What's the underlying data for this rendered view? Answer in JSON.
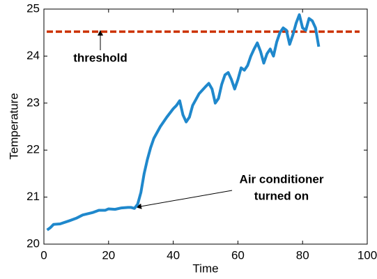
{
  "chart_data": {
    "type": "line",
    "x_label": "Time",
    "y_label": "Temperature",
    "xlim": [
      0,
      100
    ],
    "xticks": [
      0,
      20,
      40,
      60,
      80,
      100
    ],
    "ylim": [
      20,
      25
    ],
    "yticks": [
      20,
      21,
      22,
      23,
      24,
      25
    ],
    "x": [
      1,
      2,
      3,
      5,
      8,
      10,
      12,
      15,
      17,
      19,
      20,
      22,
      24,
      26,
      27,
      28,
      29,
      30,
      31,
      32,
      33,
      34,
      36,
      38,
      40,
      41,
      42,
      43,
      44,
      45,
      46,
      48,
      50,
      51,
      52,
      53,
      54,
      55,
      56,
      57,
      58,
      59,
      60,
      61,
      62,
      63,
      64,
      65,
      66,
      67,
      68,
      69,
      70,
      71,
      72,
      73,
      74,
      75,
      76,
      77,
      78,
      79,
      80,
      81,
      82,
      83,
      84,
      85
    ],
    "series": [
      {
        "color": "#1f88cc",
        "values": [
          20.3,
          20.35,
          20.42,
          20.43,
          20.5,
          20.55,
          20.62,
          20.67,
          20.72,
          20.72,
          20.75,
          20.74,
          20.77,
          20.78,
          20.78,
          20.76,
          20.85,
          21.1,
          21.5,
          21.8,
          22.05,
          22.25,
          22.5,
          22.7,
          22.88,
          22.95,
          23.05,
          22.75,
          22.6,
          22.7,
          22.95,
          23.2,
          23.35,
          23.42,
          23.3,
          23.0,
          23.1,
          23.4,
          23.6,
          23.65,
          23.5,
          23.3,
          23.5,
          23.75,
          23.7,
          23.8,
          24.0,
          24.15,
          24.28,
          24.1,
          23.85,
          24.05,
          24.15,
          24.0,
          24.3,
          24.5,
          24.6,
          24.55,
          24.25,
          24.45,
          24.7,
          24.88,
          24.6,
          24.55,
          24.8,
          24.75,
          24.6,
          24.2
        ]
      }
    ],
    "threshold": {
      "value": 24.52,
      "color": "#cc3300"
    },
    "annotations": [
      {
        "lines": [
          "threshold"
        ]
      },
      {
        "lines": [
          "Air conditioner",
          "turned on"
        ]
      }
    ]
  }
}
